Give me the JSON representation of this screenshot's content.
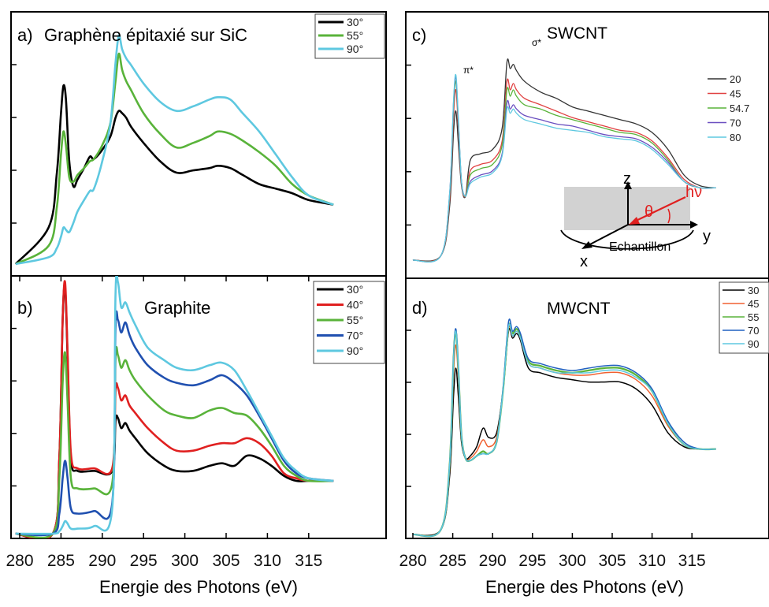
{
  "figure": {
    "xlabel": "Energie des Photons (eV)",
    "xticks": [
      "280",
      "285",
      "290",
      "295",
      "300",
      "305",
      "310",
      "315"
    ]
  },
  "chart_data": [
    {
      "id": "a",
      "type": "line",
      "panel_label": "a)",
      "title": "Graphène épitaxié sur SiC",
      "xlabel": "Energie des Photons (eV)",
      "xlim": [
        279,
        318
      ],
      "ylim": [
        0,
        1.0
      ],
      "legend": "top-right",
      "x": [
        279.5,
        283.5,
        284.5,
        285.0,
        285.3,
        285.6,
        286.0,
        286.5,
        287.0,
        287.8,
        288.5,
        289.0,
        290.0,
        291.0,
        291.6,
        292.0,
        292.4,
        292.9,
        293.5,
        295.0,
        297.0,
        299.0,
        301.0,
        303.0,
        304.0,
        305.5,
        307.0,
        309.0,
        311.0,
        313.0,
        315.0,
        318.0
      ],
      "series": [
        {
          "name": "30°",
          "color": "#000000",
          "values": [
            0.0,
            0.16,
            0.4,
            0.66,
            0.78,
            0.72,
            0.45,
            0.34,
            0.37,
            0.42,
            0.47,
            0.46,
            0.5,
            0.56,
            0.64,
            0.67,
            0.66,
            0.64,
            0.6,
            0.53,
            0.45,
            0.4,
            0.41,
            0.42,
            0.43,
            0.42,
            0.39,
            0.35,
            0.33,
            0.31,
            0.28,
            0.26
          ]
        },
        {
          "name": "55°",
          "color": "#59b33a",
          "values": [
            0.0,
            0.08,
            0.25,
            0.48,
            0.58,
            0.52,
            0.38,
            0.36,
            0.39,
            0.42,
            0.45,
            0.46,
            0.52,
            0.62,
            0.8,
            0.92,
            0.85,
            0.8,
            0.76,
            0.66,
            0.57,
            0.51,
            0.53,
            0.56,
            0.58,
            0.57,
            0.54,
            0.49,
            0.43,
            0.35,
            0.3,
            0.26
          ]
        },
        {
          "name": "90°",
          "color": "#5ec8e0",
          "values": [
            0.0,
            0.03,
            0.07,
            0.12,
            0.16,
            0.15,
            0.14,
            0.18,
            0.23,
            0.28,
            0.32,
            0.33,
            0.45,
            0.62,
            0.88,
            1.0,
            0.94,
            0.9,
            0.87,
            0.79,
            0.71,
            0.67,
            0.69,
            0.72,
            0.73,
            0.72,
            0.66,
            0.58,
            0.48,
            0.38,
            0.3,
            0.26
          ]
        }
      ]
    },
    {
      "id": "b",
      "type": "line",
      "panel_label": "b)",
      "title": "Graphite",
      "xlabel": "Energie des Photons (eV)",
      "xlim": [
        279,
        318
      ],
      "ylim": [
        0,
        1.0
      ],
      "legend": "top-right",
      "x": [
        279.5,
        284.0,
        284.8,
        285.2,
        285.5,
        285.8,
        286.2,
        287.0,
        289.0,
        291.2,
        291.6,
        291.9,
        292.3,
        292.8,
        293.3,
        294.0,
        295.5,
        297.5,
        299.0,
        301.0,
        303.0,
        304.5,
        306.0,
        307.5,
        309.0,
        310.5,
        312.0,
        313.5,
        315.0,
        318.0
      ],
      "series": [
        {
          "name": "30°",
          "color": "#000000",
          "values": [
            0.0,
            0.0,
            0.3,
            0.85,
            0.98,
            0.7,
            0.3,
            0.25,
            0.25,
            0.25,
            0.45,
            0.46,
            0.42,
            0.44,
            0.41,
            0.38,
            0.32,
            0.27,
            0.25,
            0.25,
            0.27,
            0.28,
            0.27,
            0.31,
            0.3,
            0.27,
            0.23,
            0.21,
            0.21,
            0.21
          ]
        },
        {
          "name": "40°",
          "color": "#e02020",
          "values": [
            0.0,
            0.0,
            0.3,
            0.85,
            1.0,
            0.72,
            0.32,
            0.26,
            0.26,
            0.26,
            0.57,
            0.58,
            0.53,
            0.55,
            0.51,
            0.48,
            0.42,
            0.36,
            0.33,
            0.33,
            0.35,
            0.36,
            0.36,
            0.38,
            0.36,
            0.31,
            0.24,
            0.22,
            0.21,
            0.21
          ]
        },
        {
          "name": "55°",
          "color": "#59b33a",
          "values": [
            0.0,
            0.0,
            0.22,
            0.6,
            0.72,
            0.52,
            0.22,
            0.18,
            0.18,
            0.2,
            0.7,
            0.71,
            0.66,
            0.69,
            0.65,
            0.61,
            0.55,
            0.49,
            0.47,
            0.46,
            0.49,
            0.5,
            0.48,
            0.47,
            0.42,
            0.35,
            0.27,
            0.23,
            0.21,
            0.21
          ]
        },
        {
          "name": "70°",
          "color": "#2050b0",
          "values": [
            0.0,
            0.0,
            0.08,
            0.22,
            0.29,
            0.22,
            0.1,
            0.08,
            0.09,
            0.12,
            0.82,
            0.85,
            0.8,
            0.84,
            0.79,
            0.74,
            0.67,
            0.62,
            0.6,
            0.59,
            0.61,
            0.63,
            0.6,
            0.55,
            0.47,
            0.38,
            0.29,
            0.24,
            0.22,
            0.21
          ]
        },
        {
          "name": "90°",
          "color": "#5ec8e0",
          "values": [
            0.0,
            0.0,
            0.01,
            0.03,
            0.05,
            0.04,
            0.02,
            0.02,
            0.03,
            0.1,
            0.95,
            1.0,
            0.9,
            0.92,
            0.88,
            0.83,
            0.74,
            0.69,
            0.66,
            0.65,
            0.67,
            0.68,
            0.65,
            0.57,
            0.48,
            0.39,
            0.3,
            0.25,
            0.22,
            0.21
          ]
        }
      ]
    },
    {
      "id": "c",
      "type": "line",
      "panel_label": "c)",
      "title": "SWCNT",
      "peak_labels": [
        "π*",
        "σ*"
      ],
      "inset": {
        "axes": [
          "z",
          "y",
          "x"
        ],
        "angle": "θ",
        "photon": "hν",
        "sample": "Echantillon"
      },
      "xlabel": "Energie des Photons (eV)",
      "xlim": [
        278,
        318
      ],
      "ylim": [
        0,
        1.0
      ],
      "legend": "right",
      "x": [
        280.0,
        283.5,
        284.6,
        285.1,
        285.4,
        285.7,
        286.1,
        286.6,
        287.2,
        288.5,
        290.0,
        291.2,
        291.8,
        292.2,
        292.6,
        293.0,
        294.0,
        296.0,
        298.0,
        300.0,
        302.0,
        304.0,
        306.0,
        308.0,
        310.0,
        312.0,
        314.0,
        316.0,
        318.0
      ],
      "series": [
        {
          "name": "20",
          "color": "#333333",
          "values": [
            0.0,
            0.02,
            0.25,
            0.6,
            0.7,
            0.55,
            0.35,
            0.3,
            0.47,
            0.5,
            0.52,
            0.62,
            0.93,
            0.9,
            0.92,
            0.89,
            0.84,
            0.79,
            0.76,
            0.72,
            0.7,
            0.68,
            0.66,
            0.64,
            0.6,
            0.52,
            0.4,
            0.35,
            0.34
          ]
        },
        {
          "name": "45",
          "color": "#e04040",
          "values": [
            0.0,
            0.02,
            0.28,
            0.68,
            0.8,
            0.62,
            0.36,
            0.3,
            0.42,
            0.45,
            0.47,
            0.56,
            0.84,
            0.8,
            0.83,
            0.8,
            0.76,
            0.73,
            0.7,
            0.67,
            0.65,
            0.63,
            0.61,
            0.6,
            0.56,
            0.48,
            0.38,
            0.34,
            0.34
          ]
        },
        {
          "name": "54.7",
          "color": "#59b33a",
          "values": [
            0.0,
            0.02,
            0.3,
            0.72,
            0.84,
            0.65,
            0.37,
            0.3,
            0.4,
            0.43,
            0.45,
            0.54,
            0.8,
            0.77,
            0.8,
            0.77,
            0.73,
            0.71,
            0.68,
            0.66,
            0.64,
            0.62,
            0.6,
            0.59,
            0.55,
            0.47,
            0.37,
            0.34,
            0.34
          ]
        },
        {
          "name": "70",
          "color": "#6a4fc0",
          "values": [
            0.0,
            0.02,
            0.31,
            0.74,
            0.86,
            0.66,
            0.37,
            0.3,
            0.37,
            0.4,
            0.42,
            0.5,
            0.74,
            0.71,
            0.73,
            0.71,
            0.68,
            0.66,
            0.64,
            0.63,
            0.61,
            0.59,
            0.58,
            0.57,
            0.53,
            0.46,
            0.37,
            0.34,
            0.34
          ]
        },
        {
          "name": "80",
          "color": "#5ec8e0",
          "values": [
            0.0,
            0.02,
            0.31,
            0.75,
            0.87,
            0.67,
            0.37,
            0.3,
            0.36,
            0.39,
            0.41,
            0.49,
            0.71,
            0.69,
            0.71,
            0.69,
            0.66,
            0.64,
            0.62,
            0.61,
            0.6,
            0.58,
            0.57,
            0.56,
            0.52,
            0.45,
            0.37,
            0.34,
            0.34
          ]
        }
      ]
    },
    {
      "id": "d",
      "type": "line",
      "panel_label": "d)",
      "title": "MWCNT",
      "xlabel": "Energie des Photons (eV)",
      "xlim": [
        278,
        318
      ],
      "ylim": [
        0,
        1.0
      ],
      "legend": "top-right",
      "x": [
        280.0,
        283.5,
        284.6,
        285.1,
        285.4,
        285.7,
        286.1,
        286.6,
        287.2,
        288.0,
        288.8,
        289.5,
        290.5,
        291.3,
        292.0,
        292.5,
        293.0,
        293.5,
        294.5,
        296.0,
        298.0,
        300.0,
        302.0,
        304.0,
        306.0,
        308.0,
        310.0,
        312.0,
        314.0,
        316.0,
        318.0
      ],
      "series": [
        {
          "name": "30",
          "color": "#000000",
          "values": [
            0.0,
            0.02,
            0.25,
            0.6,
            0.72,
            0.6,
            0.4,
            0.33,
            0.34,
            0.38,
            0.46,
            0.42,
            0.44,
            0.62,
            0.88,
            0.85,
            0.87,
            0.84,
            0.72,
            0.7,
            0.68,
            0.67,
            0.66,
            0.66,
            0.66,
            0.63,
            0.56,
            0.44,
            0.38,
            0.37,
            0.37
          ]
        },
        {
          "name": "45",
          "color": "#f06030",
          "values": [
            0.0,
            0.02,
            0.28,
            0.7,
            0.82,
            0.68,
            0.42,
            0.33,
            0.33,
            0.36,
            0.41,
            0.38,
            0.42,
            0.62,
            0.89,
            0.86,
            0.88,
            0.85,
            0.74,
            0.72,
            0.7,
            0.69,
            0.69,
            0.7,
            0.7,
            0.67,
            0.6,
            0.47,
            0.39,
            0.37,
            0.37
          ]
        },
        {
          "name": "55",
          "color": "#59b33a",
          "values": [
            0.0,
            0.02,
            0.3,
            0.76,
            0.88,
            0.72,
            0.43,
            0.33,
            0.32,
            0.34,
            0.36,
            0.35,
            0.4,
            0.62,
            0.9,
            0.87,
            0.89,
            0.86,
            0.75,
            0.73,
            0.71,
            0.7,
            0.71,
            0.72,
            0.72,
            0.69,
            0.62,
            0.48,
            0.39,
            0.37,
            0.37
          ]
        },
        {
          "name": "70",
          "color": "#2060c0",
          "values": [
            0.0,
            0.02,
            0.3,
            0.77,
            0.89,
            0.73,
            0.43,
            0.33,
            0.32,
            0.34,
            0.35,
            0.35,
            0.4,
            0.63,
            0.92,
            0.88,
            0.9,
            0.87,
            0.76,
            0.74,
            0.72,
            0.71,
            0.72,
            0.73,
            0.73,
            0.7,
            0.63,
            0.49,
            0.4,
            0.37,
            0.37
          ]
        },
        {
          "name": "90",
          "color": "#5ec8e0",
          "values": [
            0.0,
            0.02,
            0.3,
            0.76,
            0.88,
            0.72,
            0.43,
            0.33,
            0.32,
            0.34,
            0.35,
            0.35,
            0.4,
            0.62,
            0.9,
            0.86,
            0.88,
            0.85,
            0.74,
            0.72,
            0.7,
            0.7,
            0.7,
            0.71,
            0.71,
            0.68,
            0.62,
            0.48,
            0.39,
            0.37,
            0.37
          ]
        }
      ]
    }
  ]
}
